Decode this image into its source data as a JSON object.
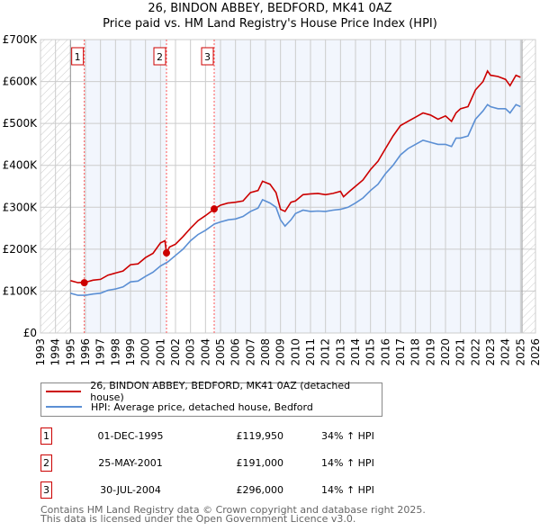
{
  "chart_data": {
    "type": "line",
    "title": "26, BINDON ABBEY, BEDFORD, MK41 0AZ",
    "subtitle": "Price paid vs. HM Land Registry's House Price Index (HPI)",
    "xlim": [
      1993,
      2026
    ],
    "ylim": [
      0,
      700000
    ],
    "x_ticks": [
      "1993",
      "1994",
      "1995",
      "1996",
      "1997",
      "1998",
      "1999",
      "2000",
      "2001",
      "2002",
      "2003",
      "2004",
      "2005",
      "2006",
      "2007",
      "2008",
      "2009",
      "2010",
      "2011",
      "2012",
      "2013",
      "2014",
      "2015",
      "2016",
      "2017",
      "2018",
      "2019",
      "2020",
      "2021",
      "2022",
      "2023",
      "2024",
      "2025",
      "2026"
    ],
    "y_ticks": [
      {
        "v": 0,
        "label": "£0"
      },
      {
        "v": 100000,
        "label": "£100K"
      },
      {
        "v": 200000,
        "label": "£200K"
      },
      {
        "v": 300000,
        "label": "£300K"
      },
      {
        "v": 400000,
        "label": "£400K"
      },
      {
        "v": 500000,
        "label": "£500K"
      },
      {
        "v": 600000,
        "label": "£600K"
      },
      {
        "v": 700000,
        "label": "£700K"
      }
    ],
    "grid": true,
    "legend_placement": "below",
    "series": [
      {
        "name": "26, BINDON ABBEY, BEDFORD, MK41 0AZ (detached house)",
        "color": "#cc0000",
        "x": [
          1995,
          1995.5,
          1996,
          1996.5,
          1997,
          1997.5,
          1998,
          1998.5,
          1999,
          1999.5,
          2000,
          2000.5,
          2001,
          2001.3,
          2001.4,
          2001.6,
          2002,
          2002.5,
          2003,
          2003.5,
          2004,
          2004.6,
          2005,
          2005.5,
          2006,
          2006.5,
          2007,
          2007.5,
          2007.8,
          2008.3,
          2008.7,
          2009,
          2009.3,
          2009.7,
          2010,
          2010.5,
          2011,
          2011.5,
          2012,
          2012.5,
          2013,
          2013.2,
          2013.6,
          2014,
          2014.5,
          2015,
          2015.5,
          2016,
          2016.5,
          2017,
          2017.5,
          2018,
          2018.5,
          2019,
          2019.5,
          2020,
          2020.4,
          2020.7,
          2021,
          2021.5,
          2022,
          2022.5,
          2022.8,
          2023,
          2023.5,
          2024,
          2024.3,
          2024.7,
          2025
        ],
        "y": [
          125000,
          120000,
          121000,
          126000,
          128000,
          138000,
          143000,
          148000,
          163000,
          165000,
          180000,
          190000,
          215000,
          220000,
          191000,
          205000,
          212000,
          230000,
          250000,
          268000,
          280000,
          296000,
          305000,
          310000,
          312000,
          315000,
          335000,
          340000,
          362000,
          355000,
          335000,
          295000,
          290000,
          312000,
          315000,
          330000,
          332000,
          333000,
          330000,
          333000,
          338000,
          325000,
          338000,
          350000,
          365000,
          390000,
          410000,
          440000,
          470000,
          495000,
          505000,
          515000,
          525000,
          520000,
          510000,
          518000,
          505000,
          525000,
          535000,
          540000,
          580000,
          600000,
          625000,
          615000,
          612000,
          605000,
          590000,
          615000,
          610000
        ]
      },
      {
        "name": "HPI: Average price, detached house, Bedford",
        "color": "#5b8fd4",
        "x": [
          1995,
          1995.5,
          1996,
          1996.5,
          1997,
          1997.5,
          1998,
          1998.5,
          1999,
          1999.5,
          2000,
          2000.5,
          2001,
          2001.5,
          2002,
          2002.5,
          2003,
          2003.5,
          2004,
          2004.6,
          2005,
          2005.5,
          2006,
          2006.5,
          2007,
          2007.5,
          2007.8,
          2008.3,
          2008.7,
          2009,
          2009.3,
          2009.7,
          2010,
          2010.5,
          2011,
          2011.5,
          2012,
          2012.5,
          2013,
          2013.5,
          2014,
          2014.5,
          2015,
          2015.5,
          2016,
          2016.5,
          2017,
          2017.5,
          2018,
          2018.5,
          2019,
          2019.5,
          2020,
          2020.4,
          2020.7,
          2021,
          2021.5,
          2022,
          2022.5,
          2022.8,
          2023,
          2023.5,
          2024,
          2024.3,
          2024.7,
          2025
        ],
        "y": [
          95000,
          90000,
          90000,
          93000,
          95000,
          102000,
          105000,
          110000,
          122000,
          124000,
          135000,
          145000,
          160000,
          170000,
          185000,
          200000,
          220000,
          235000,
          245000,
          260000,
          265000,
          270000,
          272000,
          278000,
          290000,
          298000,
          318000,
          310000,
          300000,
          270000,
          255000,
          270000,
          285000,
          293000,
          290000,
          291000,
          290000,
          293000,
          295000,
          300000,
          310000,
          322000,
          340000,
          355000,
          380000,
          400000,
          425000,
          440000,
          450000,
          460000,
          455000,
          450000,
          450000,
          445000,
          465000,
          465000,
          470000,
          510000,
          530000,
          545000,
          540000,
          535000,
          535000,
          525000,
          545000,
          540000
        ]
      }
    ],
    "sales": [
      {
        "label": "1",
        "x": 1995.92,
        "date": "01-DEC-1995",
        "price": 119950,
        "price_label": "£119,950",
        "hpi": "34% ↑ HPI"
      },
      {
        "label": "2",
        "x": 2001.4,
        "date": "25-MAY-2001",
        "price": 191000,
        "price_label": "£191,000",
        "hpi": "14% ↑ HPI"
      },
      {
        "label": "3",
        "x": 2004.58,
        "date": "30-JUL-2004",
        "price": 296000,
        "price_label": "£296,000",
        "hpi": "14% ↑ HPI"
      }
    ],
    "data_range": [
      1995,
      2025.1
    ]
  },
  "footer": {
    "line1": "Contains HM Land Registry data © Crown copyright and database right 2025.",
    "line2": "This data is licensed under the Open Government Licence v3.0."
  }
}
